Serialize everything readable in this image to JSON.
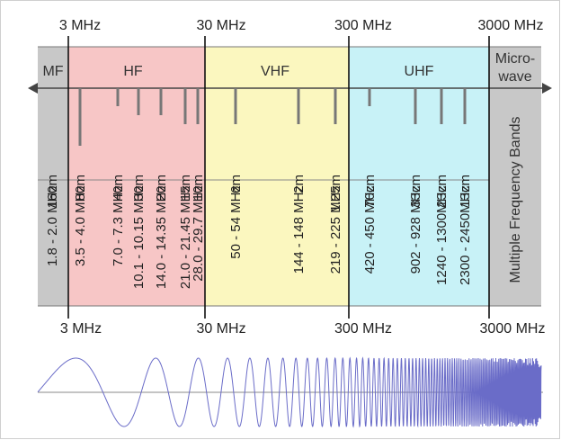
{
  "frequency_axis": {
    "top_labels": [
      "3 MHz",
      "30 MHz",
      "300 MHz",
      "3000 MHz"
    ],
    "bottom_labels": [
      "3 MHz",
      "30 MHz",
      "300 MHz",
      "3000 MHz"
    ]
  },
  "bands": {
    "mf": {
      "label": "MF",
      "color": "#c8c8c8"
    },
    "hf": {
      "label": "HF",
      "color": "#f7c6c6"
    },
    "vhf": {
      "label": "VHF",
      "color": "#fbf7bf"
    },
    "uhf": {
      "label": "UHF",
      "color": "#c8f2f7"
    },
    "microwave": {
      "label_line1": "Micro-",
      "label_line2": "wave",
      "color": "#c8c8c8",
      "side_label": "Multiple Frequency Bands"
    }
  },
  "amateur_bands": [
    {
      "wavelength": "160m",
      "range": "1.8 - 2.0 MHz"
    },
    {
      "wavelength": "80m",
      "range": "3.5 - 4.0 MHz"
    },
    {
      "wavelength": "40m",
      "range": "7.0 - 7.3 MHz"
    },
    {
      "wavelength": "30m",
      "range": "10.1 - 10.15 MHz"
    },
    {
      "wavelength": "20m",
      "range": "14.0 - 14.35 MHz"
    },
    {
      "wavelength": "15m",
      "range": "21.0 - 21.45 MHz"
    },
    {
      "wavelength": "10m",
      "range": "28.0 - 29.7 MHz"
    },
    {
      "wavelength": "6m",
      "range": "50 - 54 MHz"
    },
    {
      "wavelength": "2m",
      "range": "144 - 148 MHz"
    },
    {
      "wavelength": "1.25m",
      "range": "219 - 225 MHz"
    },
    {
      "wavelength": "70cm",
      "range": "420 - 450 MHz"
    },
    {
      "wavelength": "33cm",
      "range": "902 - 928 MHz"
    },
    {
      "wavelength": "23cm",
      "range": "1240 - 1300MHz"
    },
    {
      "wavelength": "13cm",
      "range": "2300 - 2450MHz"
    }
  ]
}
